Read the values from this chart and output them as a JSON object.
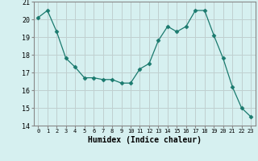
{
  "x": [
    0,
    1,
    2,
    3,
    4,
    5,
    6,
    7,
    8,
    9,
    10,
    11,
    12,
    13,
    14,
    15,
    16,
    17,
    18,
    19,
    20,
    21,
    22,
    23
  ],
  "y": [
    20.1,
    20.5,
    19.3,
    17.8,
    17.3,
    16.7,
    16.7,
    16.6,
    16.6,
    16.4,
    16.4,
    17.2,
    17.5,
    18.8,
    19.6,
    19.3,
    19.6,
    20.5,
    20.5,
    19.1,
    17.8,
    16.2,
    15.0,
    14.5
  ],
  "xlabel": "Humidex (Indice chaleur)",
  "ylim": [
    14,
    21
  ],
  "yticks": [
    14,
    15,
    16,
    17,
    18,
    19,
    20,
    21
  ],
  "xticks": [
    0,
    1,
    2,
    3,
    4,
    5,
    6,
    7,
    8,
    9,
    10,
    11,
    12,
    13,
    14,
    15,
    16,
    17,
    18,
    19,
    20,
    21,
    22,
    23
  ],
  "line_color": "#1a7a6e",
  "marker": "D",
  "marker_size": 2.5,
  "bg_color": "#d6f0f0",
  "grid_color": "#c0d0d0",
  "spine_color": "#888888"
}
